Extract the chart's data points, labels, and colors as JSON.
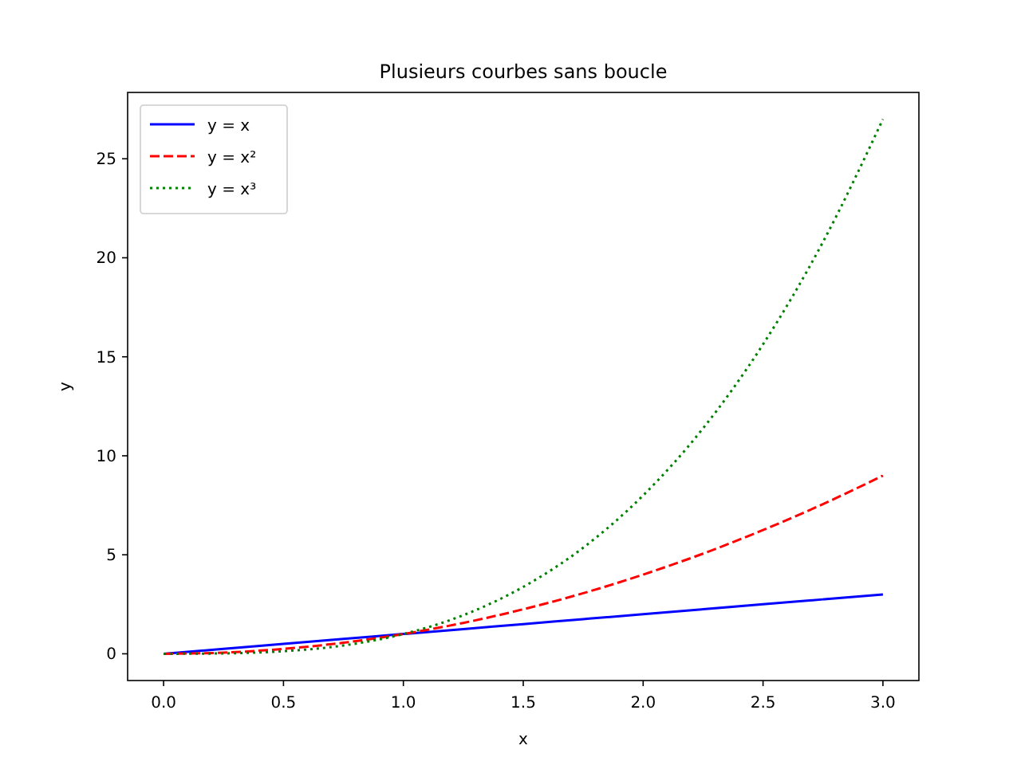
{
  "chart_data": {
    "type": "line",
    "title": "Plusieurs courbes sans boucle",
    "xlabel": "x",
    "ylabel": "y",
    "x": [
      0,
      0.25,
      0.5,
      0.75,
      1,
      1.25,
      1.5,
      1.75,
      2,
      2.25,
      2.5,
      2.75,
      3
    ],
    "series": [
      {
        "name": "y = x",
        "color": "#0000ff",
        "line_style": "solid",
        "values": [
          0,
          0.25,
          0.5,
          0.75,
          1,
          1.25,
          1.5,
          1.75,
          2,
          2.25,
          2.5,
          2.75,
          3
        ]
      },
      {
        "name": "y = x²",
        "color": "#ff0000",
        "line_style": "dashed",
        "values": [
          0,
          0.06,
          0.25,
          0.56,
          1,
          1.56,
          2.25,
          3.06,
          4,
          5.06,
          6.25,
          7.56,
          9
        ]
      },
      {
        "name": "y = x³",
        "color": "#008000",
        "line_style": "dotted",
        "values": [
          0,
          0.02,
          0.13,
          0.42,
          1,
          1.95,
          3.38,
          5.36,
          8,
          11.39,
          15.63,
          20.8,
          27
        ]
      }
    ],
    "xlim": [
      -0.15,
      3.15
    ],
    "xticks": [
      {
        "value": 0,
        "label": "0.0"
      },
      0.5,
      {
        "value": 1,
        "label": "1.0"
      },
      1.5,
      {
        "value": 2,
        "label": "2.0"
      },
      2.5,
      {
        "value": 3,
        "label": "3.0"
      }
    ],
    "ylim": [
      -1.35,
      28.35
    ],
    "yticks": [
      0,
      5,
      10,
      15,
      20,
      25
    ],
    "grid": false,
    "legend": "top left"
  }
}
